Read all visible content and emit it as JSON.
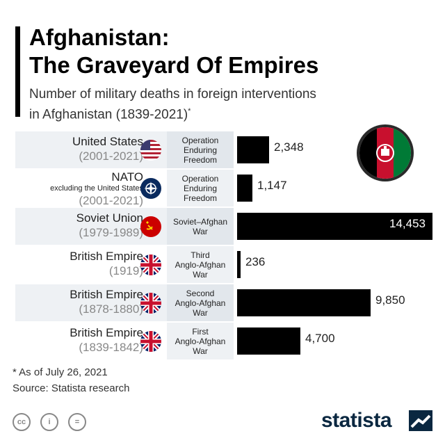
{
  "title_line1": "Afghanistan:",
  "title_line2": "The Graveyard Of Empires",
  "subtitle_line1": "Number of military deaths in foreign interventions",
  "subtitle_line2": "in Afghanistan (1839-2021)",
  "subtitle_mark": "*",
  "footnote": "* As of July 26, 2021",
  "source": "Source: Statista research",
  "brand": "statista",
  "license_icons": [
    "cc-icon",
    "attribution-icon",
    "no-derivatives-icon"
  ],
  "license_labels": [
    "cc",
    "i",
    "="
  ],
  "colors": {
    "bar": "#000000",
    "brand": "#0a2740"
  },
  "chart_data": {
    "type": "bar",
    "orientation": "horizontal",
    "value_max": 14453,
    "rows": [
      {
        "country": "United States",
        "country_sub": "",
        "years": "(2001-2021)",
        "operation": [
          "Operation",
          "Enduring",
          "Freedom"
        ],
        "value": 2348,
        "label": "2,348",
        "flag": "us-flag-icon"
      },
      {
        "country": "NATO",
        "country_sub": "excluding the United States",
        "years": "(2001-2021)",
        "operation": [
          "Operation",
          "Enduring",
          "Freedom"
        ],
        "value": 1147,
        "label": "1,147",
        "flag": "nato-flag-icon"
      },
      {
        "country": "Soviet Union",
        "country_sub": "",
        "years": "(1979-1989)",
        "operation": [
          "Soviet–Afghan",
          "War"
        ],
        "value": 14453,
        "label": "14,453",
        "flag": "ussr-flag-icon"
      },
      {
        "country": "British Empire",
        "country_sub": "",
        "years": "(1919)",
        "operation": [
          "Third",
          "Anglo-Afghan",
          "War"
        ],
        "value": 236,
        "label": "236",
        "flag": "uk-flag-icon"
      },
      {
        "country": "British Empire",
        "country_sub": "",
        "years": "(1878-1880)",
        "operation": [
          "Second",
          "Anglo-Afghan",
          "War"
        ],
        "value": 9850,
        "label": "9,850",
        "flag": "uk-flag-icon"
      },
      {
        "country": "British Empire",
        "country_sub": "",
        "years": "(1839-1842)",
        "operation": [
          "First",
          "Anglo-Afghan",
          "War"
        ],
        "value": 4700,
        "label": "4,700",
        "flag": "uk-flag-icon"
      }
    ]
  }
}
